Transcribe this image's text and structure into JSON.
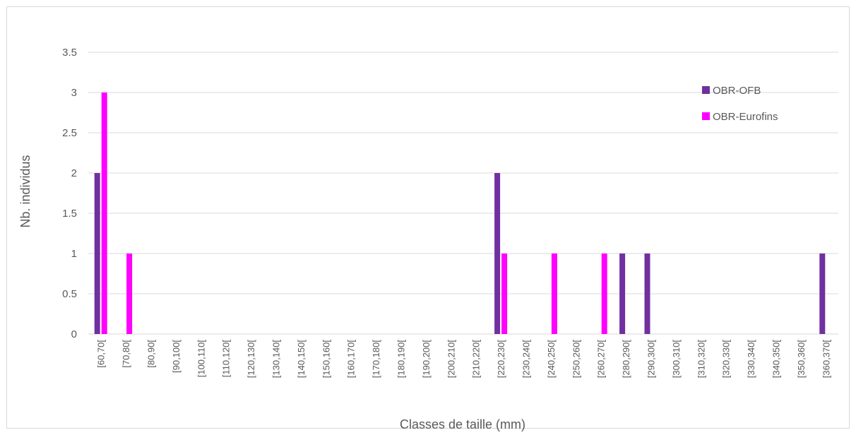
{
  "chart_data": {
    "type": "bar",
    "title": "",
    "xlabel": "Classes de taille (mm)",
    "ylabel": "Nb. individus",
    "ylim": [
      0,
      3.5
    ],
    "yticks": [
      "0",
      "0.5",
      "1",
      "1.5",
      "2",
      "2.5",
      "3",
      "3.5"
    ],
    "grid": true,
    "legend_position": "top-right",
    "categories": [
      "[60,70[",
      "[70,80[",
      "[80,90[",
      "[90,100[",
      "[100,110[",
      "[110,120[",
      "[120,130[",
      "[130,140[",
      "[140,150[",
      "[150,160[",
      "[160,170[",
      "[170,180[",
      "[180,190[",
      "[190,200[",
      "[200,210[",
      "[210,220[",
      "[220,230[",
      "[230,240[",
      "[240,250[",
      "[250,260[",
      "[260,270[",
      "[280,290[",
      "[290,300[",
      "[300,310[",
      "[310,320[",
      "[320,330[",
      "[330,340[",
      "[340,350[",
      "[350,360[",
      "[360,370["
    ],
    "series": [
      {
        "name": "OBR-OFB",
        "color": "#7030a0",
        "values": [
          2,
          0,
          0,
          0,
          0,
          0,
          0,
          0,
          0,
          0,
          0,
          0,
          0,
          0,
          0,
          0,
          2,
          0,
          0,
          0,
          0,
          1,
          1,
          0,
          0,
          0,
          0,
          0,
          0,
          1
        ]
      },
      {
        "name": "OBR-Eurofins",
        "color": "#ff00ff",
        "values": [
          3,
          1,
          0,
          0,
          0,
          0,
          0,
          0,
          0,
          0,
          0,
          0,
          0,
          0,
          0,
          0,
          1,
          0,
          1,
          0,
          1,
          0,
          0,
          0,
          0,
          0,
          0,
          0,
          0,
          0
        ]
      }
    ]
  }
}
